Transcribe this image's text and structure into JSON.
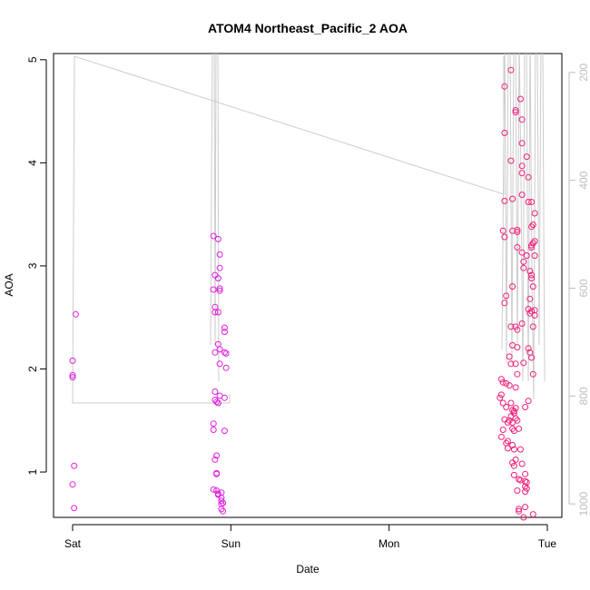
{
  "chart_data": {
    "type": "scatter",
    "title": "ATOM4 Northeast_Pacific_2 AOA",
    "xlabel": "Date",
    "ylabel": "AOA",
    "x_ticks": [
      "Sat",
      "Sun",
      "Mon",
      "Tue"
    ],
    "y_ticks": [
      1,
      2,
      3,
      4,
      5
    ],
    "ylim": [
      0.56,
      5.06
    ],
    "y2_ticks": [
      200,
      400,
      600,
      800,
      1000
    ],
    "y2lim": [
      1025,
      165
    ],
    "grid": false,
    "colors": {
      "points_early": "#e020e0",
      "points_late": "#f0207a",
      "altitude_line": "#cccccc",
      "axis": "#000000",
      "axis_right": "#bdbdbd"
    },
    "series": [
      {
        "values": [
          [
            0.02,
            2.53
          ],
          [
            0.0,
            2.08
          ],
          [
            0.0,
            1.94
          ],
          [
            0.0,
            1.92
          ],
          [
            0.01,
            1.06
          ],
          [
            0.0,
            0.88
          ],
          [
            0.01,
            0.65
          ],
          [
            0.89,
            3.29
          ],
          [
            0.9,
            2.91
          ],
          [
            0.89,
            2.77
          ],
          [
            0.9,
            2.6
          ],
          [
            0.9,
            2.55
          ],
          [
            0.9,
            2.16
          ],
          [
            0.9,
            1.78
          ],
          [
            0.9,
            1.7
          ],
          [
            0.91,
            1.68
          ],
          [
            0.89,
            1.47
          ],
          [
            0.89,
            1.41
          ],
          [
            0.91,
            1.16
          ],
          [
            0.9,
            1.12
          ],
          [
            0.91,
            0.99
          ],
          [
            0.91,
            0.98
          ],
          [
            0.89,
            0.83
          ],
          [
            0.91,
            0.82
          ],
          [
            0.92,
            0.79
          ],
          [
            0.92,
            0.78
          ],
          [
            0.92,
            3.26
          ],
          [
            0.93,
            3.11
          ],
          [
            0.93,
            2.98
          ],
          [
            0.92,
            2.88
          ],
          [
            0.93,
            2.78
          ],
          [
            0.93,
            2.76
          ],
          [
            0.92,
            2.55
          ],
          [
            0.92,
            2.24
          ],
          [
            0.93,
            2.19
          ],
          [
            0.93,
            2.05
          ],
          [
            0.93,
            1.74
          ],
          [
            0.92,
            1.67
          ],
          [
            0.94,
            0.8
          ],
          [
            0.94,
            0.75
          ],
          [
            0.95,
            0.7
          ],
          [
            0.94,
            0.69
          ],
          [
            0.94,
            0.64
          ],
          [
            0.95,
            0.62
          ],
          [
            0.94,
            0.72
          ],
          [
            0.96,
            2.4
          ],
          [
            0.96,
            2.36
          ],
          [
            0.96,
            2.16
          ],
          [
            0.97,
            2.15
          ],
          [
            0.97,
            2.01
          ],
          [
            0.96,
            1.72
          ],
          [
            0.96,
            1.4
          ]
        ]
      },
      {
        "values": [
          [
            2.73,
            4.74
          ],
          [
            2.73,
            4.29
          ],
          [
            2.73,
            3.63
          ],
          [
            2.72,
            3.34
          ],
          [
            2.73,
            3.28
          ],
          [
            2.74,
            2.71
          ],
          [
            2.73,
            2.64
          ],
          [
            2.71,
            1.9
          ],
          [
            2.72,
            1.87
          ],
          [
            2.74,
            1.86
          ],
          [
            2.71,
            1.75
          ],
          [
            2.7,
            1.72
          ],
          [
            2.72,
            1.67
          ],
          [
            2.74,
            1.63
          ],
          [
            2.73,
            1.51
          ],
          [
            2.75,
            1.48
          ],
          [
            2.72,
            1.41
          ],
          [
            2.71,
            1.34
          ],
          [
            2.75,
            1.3
          ],
          [
            2.74,
            1.28
          ],
          [
            2.75,
            1.23
          ],
          [
            2.77,
            4.9
          ],
          [
            2.77,
            4.02
          ],
          [
            2.78,
            3.65
          ],
          [
            2.78,
            3.34
          ],
          [
            2.78,
            2.8
          ],
          [
            2.77,
            2.41
          ],
          [
            2.78,
            2.23
          ],
          [
            2.76,
            2.12
          ],
          [
            2.77,
            2.05
          ],
          [
            2.76,
            1.84
          ],
          [
            2.77,
            1.67
          ],
          [
            2.78,
            1.6
          ],
          [
            2.77,
            1.54
          ],
          [
            2.76,
            1.5
          ],
          [
            2.78,
            1.48
          ],
          [
            2.78,
            1.42
          ],
          [
            2.79,
            1.4
          ],
          [
            2.78,
            1.26
          ],
          [
            2.79,
            1.22
          ],
          [
            2.8,
            1.12
          ],
          [
            2.78,
            1.09
          ],
          [
            2.79,
            1.06
          ],
          [
            2.79,
            0.97
          ],
          [
            2.81,
            0.82
          ],
          [
            2.8,
            4.51
          ],
          [
            2.8,
            4.49
          ],
          [
            2.81,
            3.35
          ],
          [
            2.81,
            3.33
          ],
          [
            2.81,
            3.18
          ],
          [
            2.8,
            2.41
          ],
          [
            2.81,
            2.38
          ],
          [
            2.81,
            2.21
          ],
          [
            2.8,
            2.05
          ],
          [
            2.81,
            1.95
          ],
          [
            2.8,
            1.82
          ],
          [
            2.8,
            1.62
          ],
          [
            2.79,
            1.59
          ],
          [
            2.79,
            1.57
          ],
          [
            2.8,
            1.52
          ],
          [
            2.81,
            1.5
          ],
          [
            2.82,
            1.42
          ],
          [
            2.83,
            1.22
          ],
          [
            2.84,
            1.08
          ],
          [
            2.82,
            0.93
          ],
          [
            2.83,
            0.92
          ],
          [
            2.82,
            0.64
          ],
          [
            2.82,
            0.62
          ],
          [
            2.83,
            4.62
          ],
          [
            2.84,
            4.42
          ],
          [
            2.84,
            4.19
          ],
          [
            2.84,
            3.97
          ],
          [
            2.84,
            3.9
          ],
          [
            2.84,
            3.69
          ],
          [
            2.84,
            3.13
          ],
          [
            2.85,
            3.04
          ],
          [
            2.85,
            2.98
          ],
          [
            2.84,
            2.44
          ],
          [
            2.85,
            2.06
          ],
          [
            2.86,
            1.63
          ],
          [
            2.86,
            0.98
          ],
          [
            2.86,
            0.91
          ],
          [
            2.87,
            0.9
          ],
          [
            2.86,
            0.86
          ],
          [
            2.87,
            0.84
          ],
          [
            2.86,
            0.81
          ],
          [
            2.86,
            0.66
          ],
          [
            2.85,
            0.56
          ],
          [
            2.87,
            4.06
          ],
          [
            2.88,
            3.86
          ],
          [
            2.88,
            3.62
          ],
          [
            2.87,
            3.1
          ],
          [
            2.88,
            2.58
          ],
          [
            2.89,
            2.54
          ],
          [
            2.88,
            2.2
          ],
          [
            2.89,
            2.16
          ],
          [
            2.88,
            1.69
          ],
          [
            2.9,
            3.62
          ],
          [
            2.91,
            3.4
          ],
          [
            2.9,
            3.38
          ],
          [
            2.9,
            3.2
          ],
          [
            2.9,
            3.18
          ],
          [
            2.89,
            2.95
          ],
          [
            2.9,
            2.91
          ],
          [
            2.9,
            2.88
          ],
          [
            2.91,
            2.8
          ],
          [
            2.89,
            2.68
          ],
          [
            2.9,
            2.56
          ],
          [
            2.91,
            2.41
          ],
          [
            2.9,
            2.11
          ],
          [
            2.91,
            1.95
          ],
          [
            2.92,
            3.51
          ],
          [
            2.92,
            3.24
          ],
          [
            2.91,
            3.22
          ],
          [
            2.92,
            3.1
          ],
          [
            2.92,
            2.57
          ],
          [
            2.92,
            2.52
          ],
          [
            2.91,
            0.59
          ]
        ]
      }
    ]
  }
}
